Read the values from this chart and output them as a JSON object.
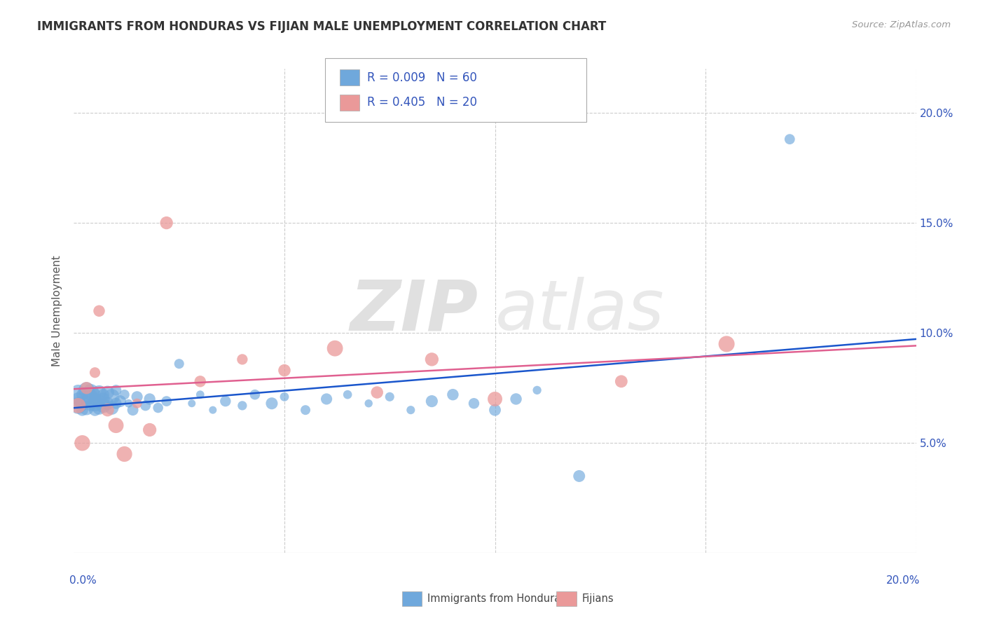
{
  "title": "IMMIGRANTS FROM HONDURAS VS FIJIAN MALE UNEMPLOYMENT CORRELATION CHART",
  "source": "Source: ZipAtlas.com",
  "ylabel": "Male Unemployment",
  "legend_blue_label": "Immigrants from Honduras",
  "legend_pink_label": "Fijians",
  "legend_r_blue": "R = 0.009",
  "legend_n_blue": "N = 60",
  "legend_r_pink": "R = 0.405",
  "legend_n_pink": "N = 20",
  "blue_color": "#6fa8dc",
  "pink_color": "#ea9999",
  "trendline_blue_color": "#1a56cc",
  "trendline_pink_color": "#e06090",
  "background_color": "#ffffff",
  "xlim": [
    0.0,
    0.2
  ],
  "ylim": [
    0.0,
    0.22
  ],
  "yticks": [
    0.05,
    0.1,
    0.15,
    0.2
  ],
  "ytick_labels": [
    "5.0%",
    "10.0%",
    "15.0%",
    "20.0%"
  ],
  "xtick_left_label": "0.0%",
  "xtick_right_label": "20.0%",
  "blue_x": [
    0.001,
    0.001,
    0.001,
    0.002,
    0.002,
    0.002,
    0.003,
    0.003,
    0.003,
    0.004,
    0.004,
    0.004,
    0.005,
    0.005,
    0.005,
    0.005,
    0.006,
    0.006,
    0.006,
    0.007,
    0.007,
    0.007,
    0.008,
    0.008,
    0.009,
    0.009,
    0.01,
    0.01,
    0.011,
    0.012,
    0.013,
    0.014,
    0.015,
    0.017,
    0.018,
    0.02,
    0.022,
    0.025,
    0.028,
    0.03,
    0.033,
    0.036,
    0.04,
    0.043,
    0.047,
    0.05,
    0.055,
    0.06,
    0.065,
    0.07,
    0.075,
    0.08,
    0.085,
    0.09,
    0.095,
    0.1,
    0.105,
    0.11,
    0.12,
    0.17
  ],
  "blue_y": [
    0.07,
    0.067,
    0.073,
    0.068,
    0.072,
    0.065,
    0.069,
    0.074,
    0.066,
    0.071,
    0.067,
    0.073,
    0.068,
    0.072,
    0.065,
    0.07,
    0.069,
    0.073,
    0.066,
    0.07,
    0.067,
    0.072,
    0.068,
    0.073,
    0.066,
    0.071,
    0.068,
    0.074,
    0.069,
    0.072,
    0.068,
    0.065,
    0.071,
    0.067,
    0.07,
    0.066,
    0.069,
    0.086,
    0.068,
    0.072,
    0.065,
    0.069,
    0.067,
    0.072,
    0.068,
    0.071,
    0.065,
    0.07,
    0.072,
    0.068,
    0.071,
    0.065,
    0.069,
    0.072,
    0.068,
    0.065,
    0.07,
    0.074,
    0.035,
    0.188
  ],
  "pink_x": [
    0.001,
    0.002,
    0.003,
    0.005,
    0.006,
    0.008,
    0.01,
    0.012,
    0.015,
    0.018,
    0.022,
    0.03,
    0.04,
    0.05,
    0.062,
    0.072,
    0.085,
    0.1,
    0.13,
    0.155
  ],
  "pink_y": [
    0.067,
    0.05,
    0.075,
    0.082,
    0.11,
    0.065,
    0.058,
    0.045,
    0.068,
    0.056,
    0.15,
    0.078,
    0.088,
    0.083,
    0.093,
    0.073,
    0.088,
    0.07,
    0.078,
    0.095
  ]
}
